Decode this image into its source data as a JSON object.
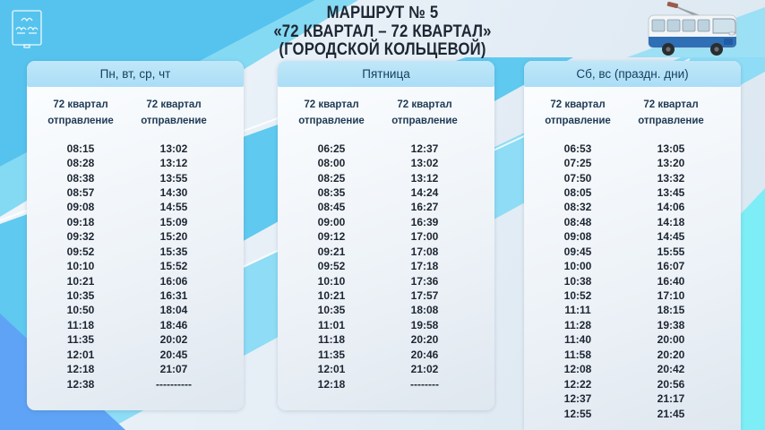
{
  "header": {
    "title_line1": "МАРШРУТ № 5",
    "title_line2": "«72 КВАРТАЛ – 72 КВАРТАЛ»",
    "title_line3": "(ГОРОДСКОЙ КОЛЬЦЕВОЙ)"
  },
  "icons": {
    "emblem": "city-coat-of-arms",
    "vehicle": "trolleybus-illustration"
  },
  "colors": {
    "sky_blue": "#55c3ee",
    "cyan_band": "#5fc9ef",
    "light_cyan": "#8edcf5",
    "cornflower": "#5fa3f6",
    "aqua": "#7deef6",
    "panel_band": "#b4e1f6",
    "band_text": "#173c5c",
    "time_text": "#1c2531",
    "trolleybus_blue": "#2f6fb5"
  },
  "schedule_columns": [
    {
      "header": "Пн, вт, ср, чт",
      "stop1_name": "72 квартал",
      "stop1_label": "отправление",
      "stop2_name": "72 квартал",
      "stop2_label": "отправление",
      "rows": [
        [
          "08:15",
          "13:02"
        ],
        [
          "08:28",
          "13:12"
        ],
        [
          "08:38",
          "13:55"
        ],
        [
          "08:57",
          "14:30"
        ],
        [
          "09:08",
          "14:55"
        ],
        [
          "09:18",
          "15:09"
        ],
        [
          "09:32",
          "15:20"
        ],
        [
          "09:52",
          "15:35"
        ],
        [
          "10:10",
          "15:52"
        ],
        [
          "10:21",
          "16:06"
        ],
        [
          "10:35",
          "16:31"
        ],
        [
          "10:50",
          "18:04"
        ],
        [
          "11:18",
          "18:46"
        ],
        [
          "11:35",
          "20:02"
        ],
        [
          "12:01",
          "20:45"
        ],
        [
          "12:18",
          "21:07"
        ],
        [
          "12:38",
          "----------"
        ]
      ]
    },
    {
      "header": "Пятница",
      "stop1_name": "72 квартал",
      "stop1_label": "отправление",
      "stop2_name": "72 квартал",
      "stop2_label": "отправление",
      "rows": [
        [
          "06:25",
          "12:37"
        ],
        [
          "08:00",
          "13:02"
        ],
        [
          "08:25",
          "13:12"
        ],
        [
          "08:35",
          "14:24"
        ],
        [
          "08:45",
          "16:27"
        ],
        [
          "09:00",
          "16:39"
        ],
        [
          "09:12",
          "17:00"
        ],
        [
          "09:21",
          "17:08"
        ],
        [
          "09:52",
          "17:18"
        ],
        [
          "10:10",
          "17:36"
        ],
        [
          "10:21",
          "17:57"
        ],
        [
          "10:35",
          "18:08"
        ],
        [
          "11:01",
          "19:58"
        ],
        [
          "11:18",
          "20:20"
        ],
        [
          "11:35",
          "20:46"
        ],
        [
          "12:01",
          "21:02"
        ],
        [
          "12:18",
          "--------"
        ]
      ]
    },
    {
      "header": "Сб, вс (праздн. дни)",
      "stop1_name": "72 квартал",
      "stop1_label": "отправление",
      "stop2_name": "72 квартал",
      "stop2_label": "отправление",
      "rows": [
        [
          "06:53",
          "13:05"
        ],
        [
          "07:25",
          "13:20"
        ],
        [
          "07:50",
          "13:32"
        ],
        [
          "08:05",
          "13:45"
        ],
        [
          "08:32",
          "14:06"
        ],
        [
          "08:48",
          "14:18"
        ],
        [
          "09:08",
          "14:45"
        ],
        [
          "09:45",
          "15:55"
        ],
        [
          "10:00",
          "16:07"
        ],
        [
          "10:38",
          "16:40"
        ],
        [
          "10:52",
          "17:10"
        ],
        [
          "11:11",
          "18:15"
        ],
        [
          "11:28",
          "19:38"
        ],
        [
          "11:40",
          "20:00"
        ],
        [
          "11:58",
          "20:20"
        ],
        [
          "12:08",
          "20:42"
        ],
        [
          "12:22",
          "20:56"
        ],
        [
          "12:37",
          "21:17"
        ],
        [
          "12:55",
          "21:45"
        ]
      ]
    }
  ]
}
